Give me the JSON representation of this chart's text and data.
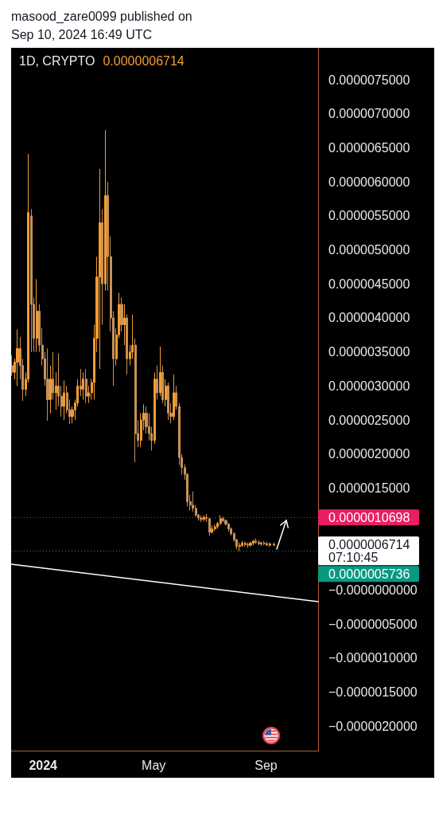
{
  "chart_data": {
    "type": "candlestick",
    "title": "1D, CRYPTO",
    "subtitle": "0.0000006714",
    "annotations": [
      "masood_zare0099 published on Sep 10, 2024 16:49 UTC",
      "0.0000006714",
      "07:10:45"
    ],
    "xlim": [
      "2023-11-27",
      "2024-10-28"
    ],
    "xticks": [
      {
        "value": "2024-01-01",
        "label": "2024"
      },
      {
        "value": "2024-05-01",
        "label": "May"
      },
      {
        "value": "2024-09-01",
        "label": "Sep"
      }
    ],
    "ylim": [
      -2.36e-06,
      7.97e-06
    ],
    "yticks": [
      {
        "value": 7.5e-06,
        "label": "0.0000075000"
      },
      {
        "value": 7e-06,
        "label": "0.0000070000"
      },
      {
        "value": 6.5e-06,
        "label": "0.0000065000"
      },
      {
        "value": 6e-06,
        "label": "0.0000060000"
      },
      {
        "value": 5.5e-06,
        "label": "0.0000055000"
      },
      {
        "value": 5e-06,
        "label": "0.0000050000"
      },
      {
        "value": 4.5e-06,
        "label": "0.0000045000"
      },
      {
        "value": 4e-06,
        "label": "0.0000040000"
      },
      {
        "value": 3.5e-06,
        "label": "0.0000035000"
      },
      {
        "value": 3e-06,
        "label": "0.0000030000"
      },
      {
        "value": 2.5e-06,
        "label": "0.0000025000"
      },
      {
        "value": 2e-06,
        "label": "0.0000020000"
      },
      {
        "value": 1.5e-06,
        "label": "0.0000015000"
      },
      {
        "value": 0,
        "label": "−0.0000000000"
      },
      {
        "value": -5e-07,
        "label": "−0.0000005000"
      },
      {
        "value": -1e-06,
        "label": "−0.0000010000"
      },
      {
        "value": -1.5e-06,
        "label": "−0.0000015000"
      },
      {
        "value": -2e-06,
        "label": "−0.0000020000"
      }
    ],
    "ref_lines": [
      {
        "axis": "y",
        "value": 1.0698e-06,
        "label": "0.0000010698",
        "color": "#e91e63",
        "line_style": "dotted"
      },
      {
        "axis": "y",
        "value": 5.736e-07,
        "label": "0.0000005736",
        "color": "#089981",
        "line_style": "dotted"
      }
    ],
    "series": [
      {
        "type": "candlestick",
        "colors": [
          "#c8925a",
          "#f39c2f",
          "#f39c2f",
          "#c8925a",
          "#c8925a",
          "#f39c2f",
          "#f39c2f",
          "#c8925a",
          "#c8925a",
          "#f39c2f",
          "#c8925a",
          "#c8925a",
          "#c8925a",
          "#c8925a",
          "#f39c2f",
          "#c8925a",
          "#f39c2f",
          "#c8925a",
          "#c8925a",
          "#f39c2f",
          "#c8925a",
          "#c8925a",
          "#f39c2f",
          "#f39c2f",
          "#f39c2f",
          "#c8925a",
          "#f39c2f",
          "#c8925a",
          "#f39c2f",
          "#f39c2f",
          "#f39c2f",
          "#f39c2f",
          "#f39c2f",
          "#c8925a",
          "#f39c2f",
          "#c8925a",
          "#c8925a",
          "#c8925a",
          "#f39c2f",
          "#f39c2f",
          "#c8925a",
          "#f39c2f",
          "#c8925a",
          "#f39c2f",
          "#f39c2f",
          "#c8925a",
          "#c8925a",
          "#f39c2f",
          "#f39c2f",
          "#c8925a",
          "#c8925a",
          "#c8925a",
          "#f39c2f",
          "#c8925a",
          "#f39c2f",
          "#c8925a",
          "#f39c2f",
          "#c8925a",
          "#c8925a",
          "#f39c2f",
          "#c8925a",
          "#c8925a",
          "#c8925a",
          "#c8925a",
          "#c8925a",
          "#c8925a",
          "#c8925a",
          "#c8925a",
          "#c8925a",
          "#c8925a",
          "#f39c2f",
          "#c8925a",
          "#c8925a",
          "#f39c2f",
          "#f39c2f",
          "#f39c2f",
          "#f39c2f",
          "#c8925a",
          "#c8925a",
          "#c8925a",
          "#c8925a",
          "#c8925a",
          "#c8925a",
          "#f39c2f",
          "#f39c2f",
          "#c8925a",
          "#c8925a",
          "#f39c2f",
          "#f39c2f",
          "#c8925a",
          "#c8925a",
          "#f39c2f",
          "#c8925a",
          "#c8925a",
          "#f39c2f",
          "#f39c2f"
        ],
        "x": [
          "2023-11-28",
          "2023-12-01",
          "2023-12-04",
          "2023-12-07",
          "2023-12-10",
          "2023-12-13",
          "2023-12-16",
          "2023-12-19",
          "2023-12-22",
          "2023-12-25",
          "2023-12-28",
          "2023-12-31",
          "2024-01-03",
          "2024-01-06",
          "2024-01-09",
          "2024-01-12",
          "2024-01-15",
          "2024-01-18",
          "2024-01-21",
          "2024-01-24",
          "2024-01-27",
          "2024-01-30",
          "2024-02-02",
          "2024-02-05",
          "2024-02-08",
          "2024-02-11",
          "2024-02-14",
          "2024-02-17",
          "2024-02-20",
          "2024-02-23",
          "2024-02-26",
          "2024-02-29",
          "2024-03-03",
          "2024-03-06",
          "2024-03-09",
          "2024-03-12",
          "2024-03-15",
          "2024-03-18",
          "2024-03-21",
          "2024-03-24",
          "2024-03-27",
          "2024-03-30",
          "2024-04-02",
          "2024-04-05",
          "2024-04-08",
          "2024-04-11",
          "2024-04-14",
          "2024-04-17",
          "2024-04-20",
          "2024-04-23",
          "2024-04-26",
          "2024-04-29",
          "2024-05-02",
          "2024-05-05",
          "2024-05-08",
          "2024-05-11",
          "2024-05-14",
          "2024-05-17",
          "2024-05-20",
          "2024-05-23",
          "2024-05-26",
          "2024-05-29",
          "2024-06-01",
          "2024-06-04",
          "2024-06-07",
          "2024-06-10",
          "2024-06-13",
          "2024-06-16",
          "2024-06-19",
          "2024-06-22",
          "2024-06-25",
          "2024-06-28",
          "2024-07-01",
          "2024-07-04",
          "2024-07-07",
          "2024-07-10",
          "2024-07-13",
          "2024-07-16",
          "2024-07-19",
          "2024-07-22",
          "2024-07-25",
          "2024-07-28",
          "2024-07-31",
          "2024-08-03",
          "2024-08-06",
          "2024-08-09",
          "2024-08-12",
          "2024-08-15",
          "2024-08-18",
          "2024-08-21",
          "2024-08-24",
          "2024-08-27",
          "2024-08-30",
          "2024-09-02",
          "2024-09-05",
          "2024-09-10"
        ],
        "ohlc": [
          [
            3.3e-06,
            3.45e-06,
            3.15e-06,
            3.2e-06
          ],
          [
            3.2e-06,
            3.4e-06,
            3.1e-06,
            3.35e-06
          ],
          [
            3.35e-06,
            3.83e-06,
            3e-06,
            3.55e-06
          ],
          [
            3.55e-06,
            3.72e-06,
            3.1e-06,
            3.3e-06
          ],
          [
            3.3e-06,
            3.4e-06,
            2.78e-06,
            2.95e-06
          ],
          [
            2.95e-06,
            3.2e-06,
            2.85e-06,
            3.1e-06
          ],
          [
            3.1e-06,
            6.41e-06,
            3.05e-06,
            5.55e-06
          ],
          [
            5.5e-06,
            5.6e-06,
            3.5e-06,
            4.2e-06
          ],
          [
            4.2e-06,
            4.3e-06,
            3.5e-06,
            3.7e-06
          ],
          [
            3.7e-06,
            4.57e-06,
            3.5e-06,
            4.1e-06
          ],
          [
            4.1e-06,
            4.2e-06,
            3.5e-06,
            3.6e-06
          ],
          [
            3.6e-06,
            3.85e-06,
            3.3e-06,
            3.4e-06
          ],
          [
            3.4e-06,
            3.5e-06,
            3e-06,
            3.1e-06
          ],
          [
            3.1e-06,
            3.55e-06,
            2.49e-06,
            2.8e-06
          ],
          [
            2.8e-06,
            3.3e-06,
            2.6e-06,
            3.1e-06
          ],
          [
            3.1e-06,
            3.5e-06,
            2.8e-06,
            2.9e-06
          ],
          [
            2.9e-06,
            3.2e-06,
            2.65e-06,
            3e-06
          ],
          [
            3e-06,
            3.48e-06,
            2.7e-06,
            2.85e-06
          ],
          [
            2.85e-06,
            3e-06,
            2.55e-06,
            2.7e-06
          ],
          [
            2.7e-06,
            3.08e-06,
            2.5e-06,
            2.9e-06
          ],
          [
            2.9e-06,
            3e-06,
            2.6e-06,
            2.65e-06
          ],
          [
            2.65e-06,
            2.8e-06,
            2.44e-06,
            2.55e-06
          ],
          [
            2.55e-06,
            2.7e-06,
            2.45e-06,
            2.65e-06
          ],
          [
            2.65e-06,
            2.8e-06,
            2.5e-06,
            2.75e-06
          ],
          [
            2.75e-06,
            3.1e-06,
            2.7e-06,
            3e-06
          ],
          [
            3e-06,
            3.25e-06,
            2.85e-06,
            2.95e-06
          ],
          [
            2.95e-06,
            3.2e-06,
            2.8e-06,
            3.1e-06
          ],
          [
            3.1e-06,
            3.25e-06,
            2.75e-06,
            2.85e-06
          ],
          [
            2.85e-06,
            3e-06,
            2.75e-06,
            2.9e-06
          ],
          [
            2.9e-06,
            3.1e-06,
            2.8e-06,
            3.05e-06
          ],
          [
            3.05e-06,
            3.9e-06,
            2.8e-06,
            3.7e-06
          ],
          [
            3.7e-06,
            4.9e-06,
            3.5e-06,
            4.6e-06
          ],
          [
            4.6e-06,
            6.19e-06,
            3.25e-06,
            5.4e-06
          ],
          [
            5.4e-06,
            5.6e-06,
            3.9e-06,
            4.5e-06
          ],
          [
            4.5e-06,
            6.76e-06,
            4.4e-06,
            5.8e-06
          ],
          [
            5.8e-06,
            6e-06,
            4.4e-06,
            4.9e-06
          ],
          [
            4.9e-06,
            5.2e-06,
            3.8e-06,
            4e-06
          ],
          [
            4e-06,
            4.1e-06,
            3e-06,
            3.4e-06
          ],
          [
            3.4e-06,
            3.85e-06,
            3.3e-06,
            3.75e-06
          ],
          [
            3.75e-06,
            4.37e-06,
            3.7e-06,
            4.2e-06
          ],
          [
            4.2e-06,
            4.3e-06,
            3.8e-06,
            3.9e-06
          ],
          [
            3.9e-06,
            4.2e-06,
            3.6e-06,
            4e-06
          ],
          [
            4e-06,
            4.05e-06,
            3.17e-06,
            3.4e-06
          ],
          [
            3.4e-06,
            3.6e-06,
            3.3e-06,
            3.5e-06
          ],
          [
            3.5e-06,
            4.05e-06,
            3.4e-06,
            3.6e-06
          ],
          [
            3.6e-06,
            3.7e-06,
            1.88e-06,
            2.3e-06
          ],
          [
            2.3e-06,
            2.5e-06,
            2.1e-06,
            2.2e-06
          ],
          [
            2.2e-06,
            2.6e-06,
            2.1e-06,
            2.5e-06
          ],
          [
            2.5e-06,
            2.73e-06,
            2.35e-06,
            2.6e-06
          ],
          [
            2.6e-06,
            2.7e-06,
            2.3e-06,
            2.4e-06
          ],
          [
            2.4e-06,
            2.6e-06,
            2.2e-06,
            2.3e-06
          ],
          [
            2.3e-06,
            2.4e-06,
            2.05e-06,
            2.2e-06
          ],
          [
            2.2e-06,
            3.2e-06,
            2.15e-06,
            3.1e-06
          ],
          [
            3.1e-06,
            3.3e-06,
            2.8e-06,
            2.9e-06
          ],
          [
            2.9e-06,
            3.58e-06,
            2.85e-06,
            3.2e-06
          ],
          [
            3.2e-06,
            3.3e-06,
            2.75e-06,
            2.8e-06
          ],
          [
            2.8e-06,
            3.1e-06,
            2.7e-06,
            3e-06
          ],
          [
            3e-06,
            3.05e-06,
            2.5e-06,
            2.6e-06
          ],
          [
            2.6e-06,
            2.75e-06,
            2.45e-06,
            2.55e-06
          ],
          [
            2.55e-06,
            3.17e-06,
            2.5e-06,
            2.9e-06
          ],
          [
            2.9e-06,
            3e-06,
            2.65e-06,
            2.7e-06
          ],
          [
            2.7e-06,
            2.75e-06,
            1.84e-06,
            1.95e-06
          ],
          [
            1.95e-06,
            2e-06,
            1.7e-06,
            1.8e-06
          ],
          [
            1.8e-06,
            1.85e-06,
            1.62e-06,
            1.7e-06
          ],
          [
            1.7e-06,
            1.72e-06,
            1.23e-06,
            1.3e-06
          ],
          [
            1.3e-06,
            1.4e-06,
            1.17e-06,
            1.25e-06
          ],
          [
            1.25e-06,
            1.45e-06,
            1.15e-06,
            1.2e-06
          ],
          [
            1.2e-06,
            1.25e-06,
            1.08e-06,
            1.1e-06
          ],
          [
            1.1e-06,
            1.12e-06,
            1.02e-06,
            1.06e-06
          ],
          [
            1.06e-06,
            1.1e-06,
            1e-06,
            1.04e-06
          ],
          [
            1.04e-06,
            1.1e-06,
            1.01e-06,
            1.07e-06
          ],
          [
            1.07e-06,
            1.12e-06,
            1e-06,
            1.05e-06
          ],
          [
            1.05e-06,
            1.06e-06,
            8e-07,
            8.5e-07
          ],
          [
            8.5e-07,
            9.5e-07,
            8.3e-07,
            9e-07
          ],
          [
            9e-07,
            9.6e-07,
            8.7e-07,
            9.3e-07
          ],
          [
            9.3e-07,
            1e-06,
            9e-07,
            9.8e-07
          ],
          [
            9.8e-07,
            1.1e-06,
            9.5e-07,
            1.05e-06
          ],
          [
            1.05e-06,
            1.08e-06,
            1e-06,
            1.02e-06
          ],
          [
            1.02e-06,
            1.04e-06,
            9.5e-07,
            9.7e-07
          ],
          [
            9.7e-07,
            9.8e-07,
            8.6e-07,
            9e-07
          ],
          [
            9e-07,
            9.2e-07,
            8e-07,
            8.3e-07
          ],
          [
            8.3e-07,
            8.5e-07,
            7.1e-07,
            7.4e-07
          ],
          [
            7.4e-07,
            7.5e-07,
            6e-07,
            6.4e-07
          ],
          [
            6.4e-07,
            7e-07,
            5.7e-07,
            6.6e-07
          ],
          [
            6.6e-07,
            7.2e-07,
            6.3e-07,
            6.9e-07
          ],
          [
            6.9e-07,
            7.1e-07,
            6.4e-07,
            6.7e-07
          ],
          [
            6.7e-07,
            7e-07,
            6.2e-07,
            6.6e-07
          ],
          [
            6.6e-07,
            7.1e-07,
            6.4e-07,
            6.9e-07
          ],
          [
            6.9e-07,
            7.4e-07,
            6.6e-07,
            7.2e-07
          ],
          [
            7.2e-07,
            7.6e-07,
            6.8e-07,
            7e-07
          ],
          [
            7e-07,
            7.3e-07,
            6.6e-07,
            6.8e-07
          ],
          [
            6.8e-07,
            7.1e-07,
            6.5e-07,
            6.9e-07
          ],
          [
            6.9e-07,
            7.2e-07,
            6.6e-07,
            6.8e-07
          ],
          [
            6.8e-07,
            7.1e-07,
            6.5e-07,
            6.6e-07
          ],
          [
            6.6e-07,
            7e-07,
            6.4e-07,
            6.8e-07
          ],
          [
            6.6e-07,
            7e-07,
            6.5e-07,
            6.714e-07
          ]
        ]
      },
      {
        "type": "line",
        "color": "#ffffff",
        "x": [
          "2023-11-27",
          "2024-10-28"
        ],
        "values": [
          3.8e-07,
          -1.7e-07
        ]
      }
    ]
  }
}
